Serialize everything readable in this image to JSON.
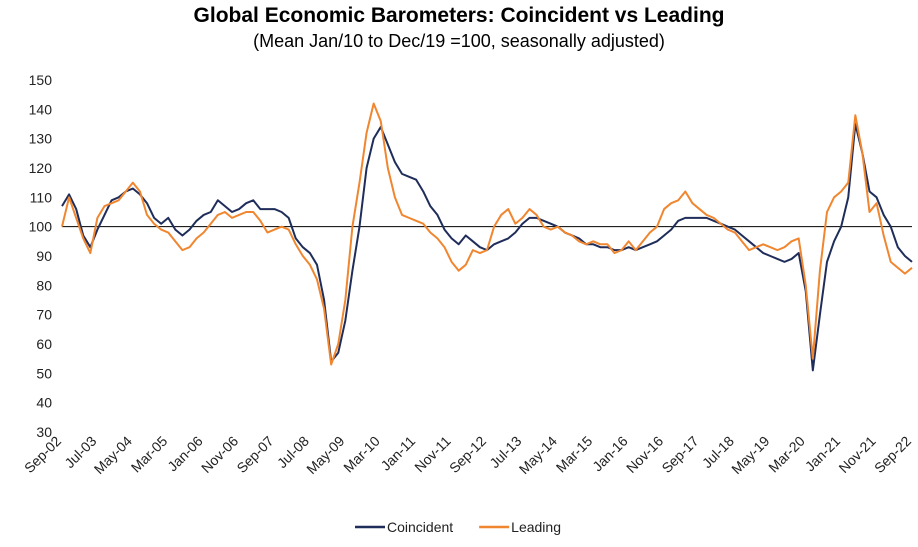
{
  "chart_data": {
    "type": "line",
    "title": "Global Economic Barometers: Coincident vs Leading",
    "subtitle": "(Mean Jan/10 to Dec/19 =100, seasonally adjusted)",
    "categories": [
      "Sep-02",
      null,
      null,
      null,
      null,
      "Jul-03",
      null,
      null,
      null,
      null,
      "May-04",
      null,
      null,
      null,
      null,
      "Mar-05",
      null,
      null,
      null,
      null,
      "Jan-06",
      null,
      null,
      null,
      null,
      "Nov-06",
      null,
      null,
      null,
      null,
      "Sep-07",
      null,
      null,
      null,
      null,
      "Jul-08",
      null,
      null,
      null,
      null,
      "May-09",
      null,
      null,
      null,
      null,
      "Mar-10",
      null,
      null,
      null,
      null,
      "Jan-11",
      null,
      null,
      null,
      null,
      "Nov-11",
      null,
      null,
      null,
      null,
      "Sep-12",
      null,
      null,
      null,
      null,
      "Jul-13",
      null,
      null,
      null,
      null,
      "May-14",
      null,
      null,
      null,
      null,
      "Mar-15",
      null,
      null,
      null,
      null,
      "Jan-16",
      null,
      null,
      null,
      null,
      "Nov-16",
      null,
      null,
      null,
      null,
      "Sep-17",
      null,
      null,
      null,
      null,
      "Jul-18",
      null,
      null,
      null,
      null,
      "May-19",
      null,
      null,
      null,
      null,
      "Mar-20",
      null,
      null,
      null,
      null,
      "Jan-21",
      null,
      null,
      null,
      null,
      "Nov-21",
      null,
      null,
      null,
      null,
      "Sep-22"
    ],
    "series": [
      {
        "name": "Coincident",
        "color": "#1f2d5a",
        "values": [
          107,
          111,
          106,
          97,
          93,
          99,
          104,
          109,
          110,
          112,
          113,
          111,
          108,
          103,
          101,
          103,
          99,
          97,
          99,
          102,
          104,
          105,
          109,
          107,
          105,
          106,
          108,
          109,
          106,
          106,
          106,
          105,
          103,
          96,
          93,
          91,
          87,
          75,
          54,
          57,
          68,
          85,
          100,
          120,
          130,
          134,
          128,
          122,
          118,
          117,
          116,
          112,
          107,
          104,
          99,
          96,
          94,
          97,
          95,
          93,
          92,
          94,
          95,
          96,
          98,
          101,
          103,
          103,
          102,
          101,
          100,
          98,
          97,
          96,
          94,
          94,
          93,
          93,
          92,
          92,
          93,
          92,
          93,
          94,
          95,
          97,
          99,
          102,
          103,
          103,
          103,
          103,
          102,
          101,
          100,
          99,
          97,
          95,
          93,
          91,
          90,
          89,
          88,
          89,
          91,
          78,
          51,
          70,
          88,
          95,
          100,
          110,
          135,
          125,
          112,
          110,
          104,
          100,
          93,
          90,
          88
        ]
      },
      {
        "name": "Leading",
        "color": "#f0862f",
        "values": [
          100,
          110,
          103,
          96,
          91,
          103,
          107,
          108,
          109,
          112,
          115,
          112,
          104,
          101,
          99,
          98,
          95,
          92,
          93,
          96,
          98,
          101,
          104,
          105,
          103,
          104,
          105,
          105,
          102,
          98,
          99,
          100,
          99,
          94,
          90,
          87,
          82,
          72,
          53,
          60,
          75,
          100,
          115,
          132,
          142,
          136,
          120,
          110,
          104,
          103,
          102,
          101,
          98,
          96,
          93,
          88,
          85,
          87,
          92,
          91,
          92,
          100,
          104,
          106,
          101,
          103,
          106,
          104,
          100,
          99,
          100,
          98,
          97,
          95,
          94,
          95,
          94,
          94,
          91,
          92,
          95,
          92,
          95,
          98,
          100,
          106,
          108,
          109,
          112,
          108,
          106,
          104,
          103,
          101,
          99,
          98,
          95,
          92,
          93,
          94,
          93,
          92,
          93,
          95,
          96,
          80,
          55,
          85,
          105,
          110,
          112,
          115,
          138,
          125,
          105,
          108,
          97,
          88,
          86,
          84,
          86
        ]
      }
    ],
    "reference_line": 100,
    "ylim": [
      30,
      150
    ],
    "yticks": [
      30,
      40,
      50,
      60,
      70,
      80,
      90,
      100,
      110,
      120,
      130,
      140,
      150
    ],
    "grid": false,
    "legend": "bottom"
  }
}
